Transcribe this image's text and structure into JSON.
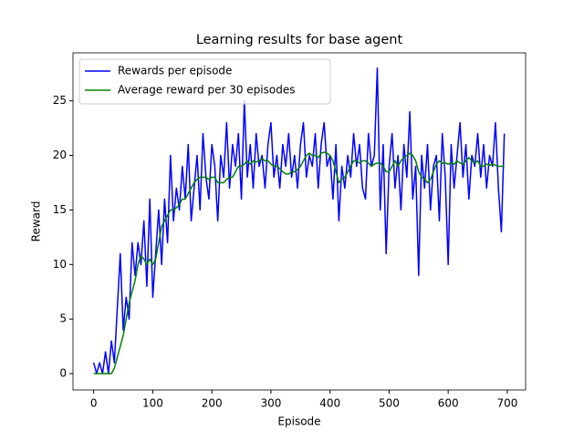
{
  "chart_data": {
    "type": "line",
    "title": "Learning results for base agent",
    "x_label": "Episode",
    "y_label": "Reward",
    "x": [
      0,
      5,
      10,
      15,
      20,
      25,
      30,
      35,
      40,
      45,
      50,
      55,
      60,
      65,
      70,
      75,
      80,
      85,
      90,
      95,
      100,
      105,
      110,
      115,
      120,
      125,
      130,
      135,
      140,
      145,
      150,
      155,
      160,
      165,
      170,
      175,
      180,
      185,
      190,
      195,
      200,
      205,
      210,
      215,
      220,
      225,
      230,
      235,
      240,
      245,
      250,
      255,
      260,
      265,
      270,
      275,
      280,
      285,
      290,
      295,
      300,
      305,
      310,
      315,
      320,
      325,
      330,
      335,
      340,
      345,
      350,
      355,
      360,
      365,
      370,
      375,
      380,
      385,
      390,
      395,
      400,
      405,
      410,
      415,
      420,
      425,
      430,
      435,
      440,
      445,
      450,
      455,
      460,
      465,
      470,
      475,
      480,
      485,
      490,
      495,
      500,
      505,
      510,
      515,
      520,
      525,
      530,
      535,
      540,
      545,
      550,
      555,
      560,
      565,
      570,
      575,
      580,
      585,
      590,
      595,
      600,
      605,
      610,
      615,
      620,
      625,
      630,
      635,
      640,
      645,
      650,
      655,
      660,
      665,
      670,
      675,
      680,
      685,
      690,
      695
    ],
    "series": [
      {
        "name": "Rewards per episode",
        "color": "#0000ff",
        "values": [
          1,
          0,
          1,
          0,
          2,
          0,
          3,
          1,
          6,
          11,
          4,
          7,
          5,
          12,
          9,
          12,
          10,
          14,
          8,
          16,
          7,
          11,
          15,
          10,
          16,
          12,
          20,
          14,
          17,
          15,
          19,
          16,
          21,
          14,
          17,
          20,
          15,
          22,
          18,
          16,
          21,
          19,
          14,
          20,
          18,
          23,
          17,
          21,
          19,
          22,
          16,
          25,
          18,
          21,
          17,
          22,
          19,
          20,
          17,
          21,
          23,
          18,
          20,
          17,
          21,
          19,
          22,
          18,
          20,
          17,
          21,
          23,
          18,
          20,
          19,
          22,
          17,
          21,
          23,
          19,
          20,
          16,
          21,
          14,
          19,
          17,
          20,
          18,
          22,
          19,
          21,
          17,
          16,
          22,
          19,
          20,
          28,
          15,
          21,
          11,
          19,
          22,
          17,
          20,
          15,
          21,
          18,
          24,
          16,
          19,
          9,
          20,
          17,
          21,
          15,
          19,
          20,
          14,
          22,
          18,
          10,
          21,
          17,
          20,
          23,
          18,
          21,
          16,
          20,
          19,
          22,
          18,
          21,
          17,
          20,
          19,
          23,
          17,
          13,
          22
        ]
      },
      {
        "name": "Average reward per 30 episodes",
        "color": "#008000",
        "values": [
          0,
          0,
          0,
          0,
          0,
          0,
          0,
          0.5,
          1.5,
          2.5,
          3.5,
          5,
          6.5,
          7.5,
          8.5,
          10,
          10.8,
          10.5,
          10,
          10.5,
          10,
          10.5,
          12,
          13.5,
          14,
          14.5,
          15,
          15,
          15.2,
          15.5,
          16,
          16,
          16.5,
          17,
          17.5,
          17.8,
          18,
          18,
          18,
          17.8,
          18,
          18,
          17.5,
          17.5,
          17.5,
          17.8,
          18,
          18,
          18.5,
          19,
          19,
          19.2,
          19.5,
          19.2,
          19.5,
          19.4,
          19.5,
          19.7,
          19.5,
          19.5,
          19.2,
          19,
          19,
          18.8,
          18.5,
          18.3,
          18.3,
          18.5,
          18.5,
          18.7,
          19,
          19.5,
          20,
          20.2,
          20,
          20,
          19.8,
          20.2,
          20.3,
          20.2,
          20,
          19.5,
          18.5,
          17.5,
          17.8,
          18,
          18.5,
          19,
          19.5,
          19.5,
          19.3,
          19.5,
          19.5,
          19.3,
          19,
          19.2,
          19.3,
          19.3,
          19,
          18.5,
          18.5,
          19,
          19.5,
          19,
          19.5,
          19.8,
          20,
          20.2,
          20,
          19.5,
          18.5,
          18,
          17.8,
          17.5,
          17.8,
          18.5,
          19.2,
          19.5,
          19.3,
          19.3,
          19.2,
          19.3,
          19.2,
          19.5,
          19.3,
          19.2,
          19.5,
          19.8,
          19.5,
          19.3,
          19.5,
          19,
          19,
          19.2,
          19.1,
          19.2,
          19.1,
          19,
          19,
          19
        ]
      }
    ],
    "xlim": [
      -35,
      731
    ],
    "ylim": [
      -1.5,
      29.4
    ],
    "xticks": [
      0,
      100,
      200,
      300,
      400,
      500,
      600,
      700
    ],
    "yticks": [
      0,
      5,
      10,
      15,
      20,
      25
    ],
    "legend": "upper left"
  }
}
